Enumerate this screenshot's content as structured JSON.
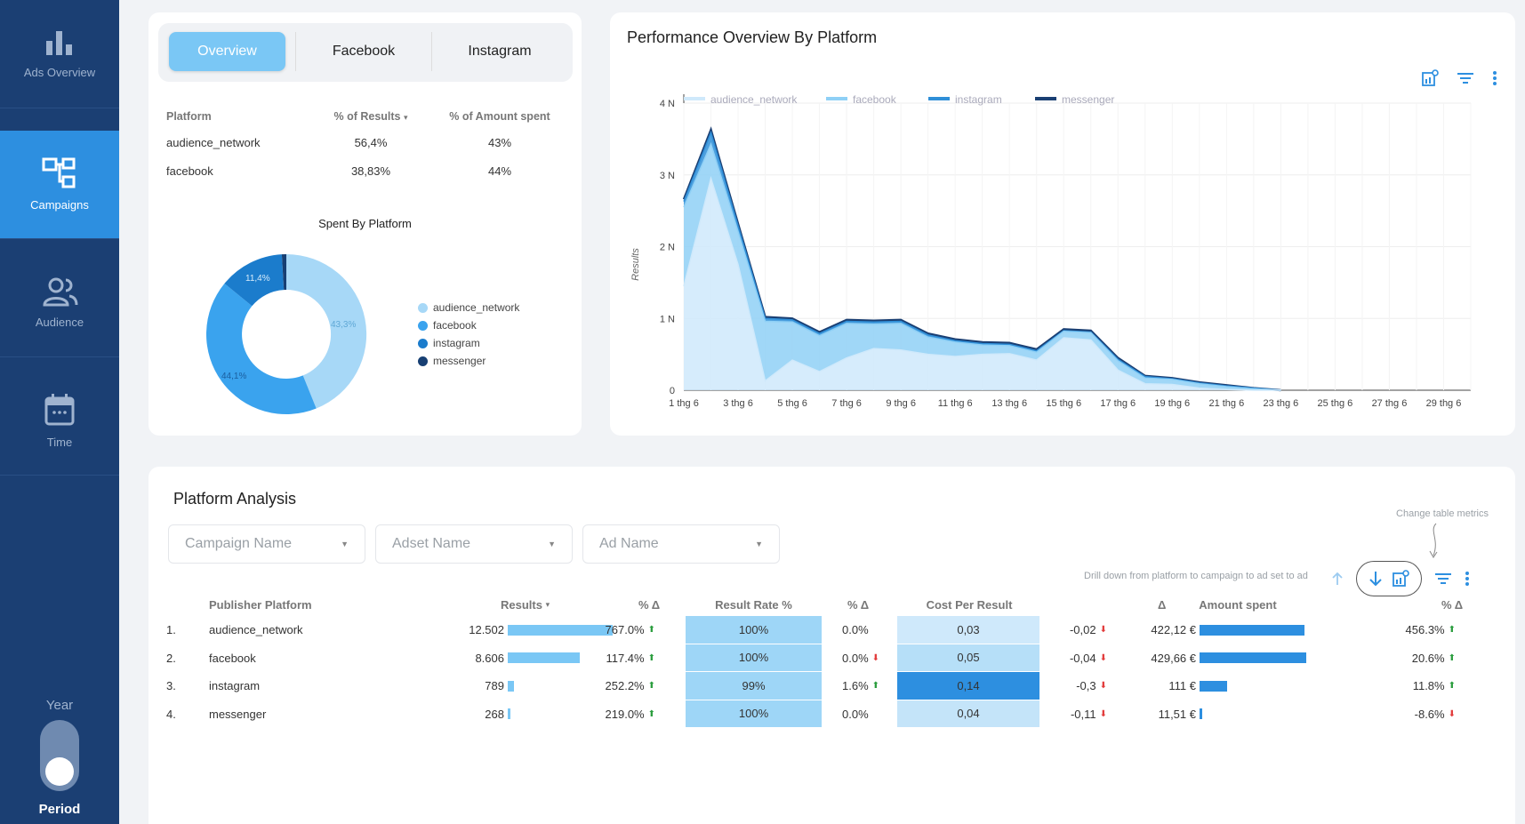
{
  "sidebar": {
    "items": [
      {
        "label": "Ads Overview",
        "icon": "bar-chart-icon"
      },
      {
        "label": "Campaigns",
        "icon": "hierarchy-icon",
        "active": true
      },
      {
        "label": "Audience",
        "icon": "users-icon"
      },
      {
        "label": "Time",
        "icon": "calendar-icon"
      }
    ],
    "year_label": "Year",
    "period_label": "Period"
  },
  "tabs": [
    {
      "label": "Overview",
      "active": true
    },
    {
      "label": "Facebook"
    },
    {
      "label": "Instagram"
    }
  ],
  "platform_summary": {
    "headers": [
      "Platform",
      "% of Results",
      "% of Amount spent"
    ],
    "sort_indicator": "▾",
    "rows": [
      [
        "audience_network",
        "56,4%",
        "43%"
      ],
      [
        "facebook",
        "38,83%",
        "44%"
      ]
    ]
  },
  "donut": {
    "title": "Spent By Platform",
    "legend": [
      {
        "name": "audience_network",
        "color": "#a7d8f7"
      },
      {
        "name": "facebook",
        "color": "#3aa3ee"
      },
      {
        "name": "instagram",
        "color": "#1b7ccc"
      },
      {
        "name": "messenger",
        "color": "#173f73"
      }
    ],
    "slice_labels": [
      "43,3%",
      "44,1%",
      "11,4%"
    ]
  },
  "chart_data": {
    "type": "area",
    "title": "Performance Overview By Platform",
    "ylabel": "Results",
    "xlabel": "",
    "ylim": [
      0,
      4000
    ],
    "ytick_labels": [
      "0",
      "1 N",
      "2 N",
      "3 N",
      "4 N"
    ],
    "ytick_values": [
      0,
      1000,
      2000,
      3000,
      4000
    ],
    "legend_position": "top",
    "x": [
      "1 thg 6",
      "2 thg 6",
      "3 thg 6",
      "4 thg 6",
      "5 thg 6",
      "6 thg 6",
      "7 thg 6",
      "8 thg 6",
      "9 thg 6",
      "10 thg 6",
      "11 thg 6",
      "12 thg 6",
      "13 thg 6",
      "14 thg 6",
      "15 thg 6",
      "16 thg 6",
      "17 thg 6",
      "18 thg 6",
      "19 thg 6",
      "20 thg 6",
      "21 thg 6",
      "22 thg 6",
      "23 thg 6",
      "24 thg 6",
      "25 thg 6",
      "26 thg 6",
      "27 thg 6",
      "28 thg 6",
      "29 thg 6",
      "30 thg 6"
    ],
    "xtick_labels": [
      "1 thg 6",
      "3 thg 6",
      "5 thg 6",
      "7 thg 6",
      "9 thg 6",
      "11 thg 6",
      "13 thg 6",
      "15 thg 6",
      "17 thg 6",
      "19 thg 6",
      "21 thg 6",
      "23 thg 6",
      "25 thg 6",
      "27 thg 6",
      "29 thg 6"
    ],
    "series": [
      {
        "name": "audience_network",
        "color": "#cfe9fb",
        "values": [
          1450,
          2950,
          1750,
          130,
          420,
          260,
          450,
          580,
          560,
          500,
          470,
          500,
          510,
          420,
          730,
          700,
          280,
          90,
          80,
          30,
          10,
          0,
          0,
          0,
          0,
          0,
          0,
          0,
          0,
          0
        ]
      },
      {
        "name": "facebook",
        "color": "#8fd0f6",
        "values": [
          1100,
          480,
          460,
          830,
          530,
          500,
          480,
          340,
          370,
          240,
          200,
          130,
          110,
          110,
          90,
          100,
          130,
          80,
          70,
          60,
          40,
          20,
          0,
          0,
          0,
          0,
          0,
          0,
          0,
          0
        ]
      },
      {
        "name": "instagram",
        "color": "#2f8fd8",
        "values": [
          80,
          160,
          80,
          40,
          30,
          30,
          30,
          30,
          30,
          30,
          20,
          20,
          20,
          20,
          10,
          10,
          20,
          20,
          10,
          10,
          10,
          10,
          0,
          0,
          0,
          0,
          0,
          0,
          0,
          0
        ]
      },
      {
        "name": "messenger",
        "color": "#1a3f73",
        "values": [
          30,
          40,
          30,
          20,
          20,
          20,
          20,
          20,
          20,
          20,
          20,
          20,
          20,
          20,
          20,
          20,
          20,
          10,
          10,
          10,
          10,
          0,
          0,
          0,
          0,
          0,
          0,
          0,
          0,
          0
        ]
      }
    ]
  },
  "analysis": {
    "title": "Platform Analysis",
    "filters": [
      "Campaign Name",
      "Adset Name",
      "Ad Name"
    ],
    "hint_metrics": "Change table metrics",
    "hint_drill": "Drill down from platform to campaign to ad set to ad",
    "headers": [
      "Publisher Platform",
      "Results",
      "% Δ",
      "Result Rate %",
      "% Δ",
      "Cost Per Result",
      "Δ",
      "Amount spent",
      "% Δ"
    ],
    "sort_indicator": "▾",
    "rows": [
      {
        "idx": "1.",
        "platform": "audience_network",
        "results": "12.502",
        "results_n": 12502,
        "results_d": "767.0%",
        "results_dir": "up",
        "rate": "100%",
        "rate_d": "0.0%",
        "rate_dir": "",
        "cpr": "0,03",
        "cpr_d": "-0,02",
        "cpr_dir": "down",
        "spent": "422,12 €",
        "spent_n": 422.12,
        "spent_d": "456.3%",
        "spent_dir": "up"
      },
      {
        "idx": "2.",
        "platform": "facebook",
        "results": "8.606",
        "results_n": 8606,
        "results_d": "117.4%",
        "results_dir": "up",
        "rate": "100%",
        "rate_d": "0.0%",
        "rate_dir": "down",
        "cpr": "0,05",
        "cpr_d": "-0,04",
        "cpr_dir": "down",
        "spent": "429,66 €",
        "spent_n": 429.66,
        "spent_d": "20.6%",
        "spent_dir": "up"
      },
      {
        "idx": "3.",
        "platform": "instagram",
        "results": "789",
        "results_n": 789,
        "results_d": "252.2%",
        "results_dir": "up",
        "rate": "99%",
        "rate_d": "1.6%",
        "rate_dir": "up",
        "cpr": "0,14",
        "cpr_d": "-0,3",
        "cpr_dir": "down",
        "spent": "111 €",
        "spent_n": 111,
        "spent_d": "11.8%",
        "spent_dir": "up"
      },
      {
        "idx": "4.",
        "platform": "messenger",
        "results": "268",
        "results_n": 268,
        "results_d": "219.0%",
        "results_dir": "up",
        "rate": "100%",
        "rate_d": "0.0%",
        "rate_dir": "",
        "cpr": "0,04",
        "cpr_d": "-0,11",
        "cpr_dir": "down",
        "spent": "11,51 €",
        "spent_n": 11.51,
        "spent_d": "-8.6%",
        "spent_dir": "down"
      }
    ]
  }
}
